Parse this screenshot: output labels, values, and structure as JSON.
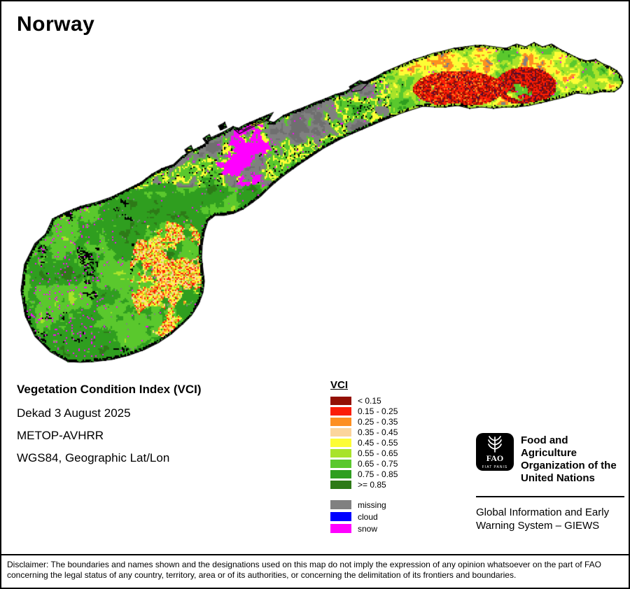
{
  "page": {
    "title": "Norway"
  },
  "info_block": {
    "heading": "Vegetation Condition Index (VCI)",
    "dekad": "Dekad 3 August 2025",
    "sensor": "METOP-AVHRR",
    "projection": "WGS84, Geographic Lat/Lon"
  },
  "legend": {
    "title": "VCI",
    "classes": [
      {
        "label": "< 0.15",
        "color": "#931004"
      },
      {
        "label": "0.15 - 0.25",
        "color": "#fb1d07"
      },
      {
        "label": "0.25 - 0.35",
        "color": "#fd8f20"
      },
      {
        "label": "0.35 - 0.45",
        "color": "#fcd59c"
      },
      {
        "label": "0.45 - 0.55",
        "color": "#fdfd35"
      },
      {
        "label": "0.55 - 0.65",
        "color": "#a8e32a"
      },
      {
        "label": "0.65 - 0.75",
        "color": "#5ac82d"
      },
      {
        "label": "0.75 - 0.85",
        "color": "#2f9e1f"
      },
      {
        "label": ">= 0.85",
        "color": "#2d7a17"
      }
    ],
    "extras": [
      {
        "label": "missing",
        "color": "#808080"
      },
      {
        "label": "cloud",
        "color": "#0000ff"
      },
      {
        "label": "snow",
        "color": "#ff00ff"
      }
    ]
  },
  "footer": {
    "logo_letters": "FAO",
    "logo_motto": "FIAT PANIS",
    "org_lines": [
      "Food and Agriculture",
      "Organization of the",
      "United Nations"
    ],
    "giews_lines": [
      "Global Information and Early",
      "Warning System – GIEWS"
    ]
  },
  "disclaimer": {
    "line1": "Disclaimer: The boundaries and names shown and the designations used on this map do not imply the expression of any opinion whatsoever on the part of FAO",
    "line2": "concerning the legal status of any country, territory, area or of its authorities, or concerning the delimitation of its frontiers and boundaries."
  },
  "map": {
    "region": "Norway",
    "outline_color": "#000000",
    "sea_color": "#ffffff",
    "relief_color": "#000000",
    "extra_colors": {
      "dark_purple": "#4a0d3a",
      "mid_gray": "#6f6f6f"
    }
  }
}
